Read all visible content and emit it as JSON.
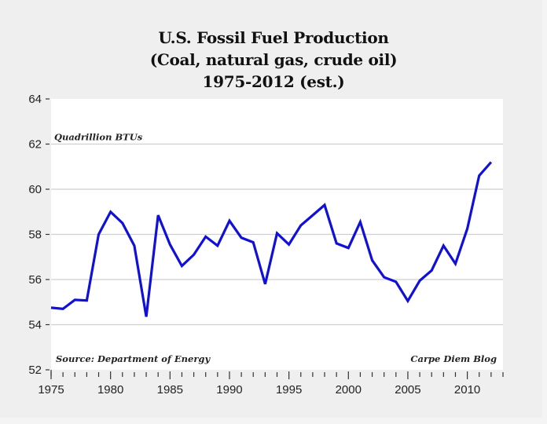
{
  "chart_data": {
    "type": "line",
    "title": [
      "U.S. Fossil Fuel Production",
      "(Coal, natural gas, crude oil)",
      "1975-2012 (est.)"
    ],
    "ylabel": "Quadrillion BTUs",
    "xlabel": "",
    "source": "Source: Department of Energy",
    "credit": "Carpe Diem Blog",
    "xlim": [
      1975,
      2013
    ],
    "ylim": [
      52,
      64
    ],
    "yticks": [
      "52",
      "54",
      "56",
      "58",
      "60",
      "62",
      "64"
    ],
    "ytick_values": [
      52,
      54,
      56,
      58,
      60,
      62,
      64
    ],
    "xticks": [
      "1975",
      "1980",
      "1985",
      "1990",
      "1995",
      "2000",
      "2005",
      "2010"
    ],
    "xtick_values": [
      1975,
      1980,
      1985,
      1990,
      1995,
      2000,
      2005,
      2010
    ],
    "grid": true,
    "series": [
      {
        "name": "U.S. Fossil Fuel Production",
        "color": "#1010d8",
        "x": [
          1975,
          1976,
          1977,
          1978,
          1979,
          1980,
          1981,
          1982,
          1983,
          1984,
          1985,
          1986,
          1987,
          1988,
          1989,
          1990,
          1991,
          1992,
          1993,
          1994,
          1995,
          1996,
          1997,
          1998,
          1999,
          2000,
          2001,
          2002,
          2003,
          2004,
          2005,
          2006,
          2007,
          2008,
          2009,
          2010,
          2011,
          2012
        ],
        "values": [
          54.75,
          54.7,
          55.1,
          55.07,
          58.0,
          59.0,
          58.5,
          57.5,
          54.35,
          58.85,
          57.55,
          56.6,
          57.1,
          57.9,
          57.5,
          58.6,
          57.85,
          57.65,
          55.8,
          58.05,
          57.55,
          58.4,
          58.85,
          59.3,
          57.6,
          57.4,
          58.55,
          56.85,
          56.1,
          55.9,
          55.05,
          55.95,
          56.4,
          57.5,
          56.7,
          58.25,
          60.6,
          61.2
        ]
      }
    ]
  }
}
